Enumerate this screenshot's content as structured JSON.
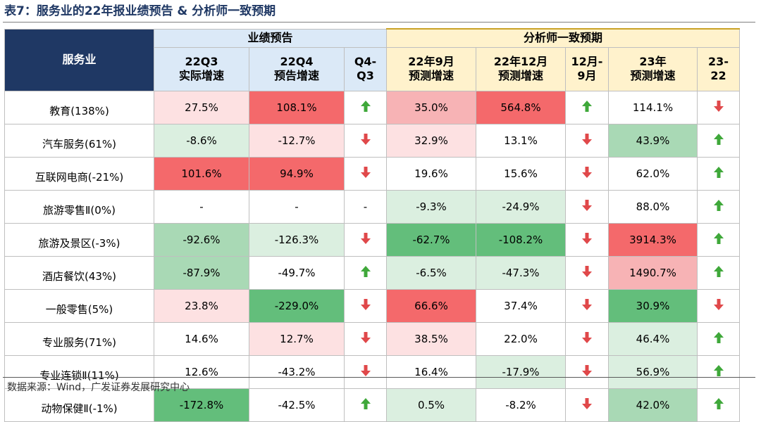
{
  "title": "表7：服务业的22年报业绩预告 & 分析师一致预期",
  "header": {
    "row_label": "服务业",
    "group_performance": "业绩预告",
    "group_consensus": "分析师一致预期",
    "cols": [
      {
        "l1": "22Q3",
        "l2": "实际增速"
      },
      {
        "l1": "22Q4",
        "l2": "预告增速"
      },
      {
        "l1": "Q4-",
        "l2": "Q3"
      },
      {
        "l1": "22年9月",
        "l2": "预测增速"
      },
      {
        "l1": "22年12月",
        "l2": "预测增速"
      },
      {
        "l1": "12月-",
        "l2": "9月"
      },
      {
        "l1": "23年",
        "l2": "预测增速"
      },
      {
        "l1": "23-",
        "l2": "22"
      }
    ]
  },
  "colors": {
    "red_strong": "#f4696b",
    "red_medium": "#f7b3b5",
    "red_light": "#fde1e2",
    "green_strong": "#63be7b",
    "green_medium": "#a9d9b5",
    "green_light": "#dbefe0",
    "white": "#ffffff",
    "arrow_up": "#3fa83a",
    "arrow_down": "#e0484a"
  },
  "rows": [
    {
      "label": "教育(138%)",
      "q3": "27.5%",
      "q3c": "red_light",
      "q4": "108.1%",
      "q4c": "red_strong",
      "a1": "up",
      "sep": "35.0%",
      "sepc": "red_medium",
      "dec": "564.8%",
      "decc": "red_strong",
      "a2": "up",
      "y23": "114.1%",
      "y23c": "white",
      "a3": "down"
    },
    {
      "label": "汽车服务(61%)",
      "q3": "-8.6%",
      "q3c": "green_light",
      "q4": "-12.7%",
      "q4c": "red_light",
      "a1": "down",
      "sep": "32.9%",
      "sepc": "red_light",
      "dec": "13.1%",
      "decc": "white",
      "a2": "down",
      "y23": "43.9%",
      "y23c": "green_medium",
      "a3": "up"
    },
    {
      "label": "互联网电商(-21%)",
      "q3": "101.6%",
      "q3c": "red_strong",
      "q4": "94.9%",
      "q4c": "red_strong",
      "a1": "down",
      "sep": "19.6%",
      "sepc": "white",
      "dec": "15.6%",
      "decc": "white",
      "a2": "down",
      "y23": "62.0%",
      "y23c": "white",
      "a3": "up"
    },
    {
      "label": "旅游零售Ⅱ(0%)",
      "q3": "-",
      "q3c": "white",
      "q4": "-",
      "q4c": "white",
      "a1": "-",
      "sep": "-9.3%",
      "sepc": "green_light",
      "dec": "-24.9%",
      "decc": "green_light",
      "a2": "down",
      "y23": "88.0%",
      "y23c": "white",
      "a3": "up"
    },
    {
      "label": "旅游及景区(-3%)",
      "q3": "-92.6%",
      "q3c": "green_medium",
      "q4": "-126.3%",
      "q4c": "green_light",
      "a1": "down",
      "sep": "-62.7%",
      "sepc": "green_strong",
      "dec": "-108.2%",
      "decc": "green_strong",
      "a2": "down",
      "y23": "3914.3%",
      "y23c": "red_strong",
      "a3": "up"
    },
    {
      "label": "酒店餐饮(43%)",
      "q3": "-87.9%",
      "q3c": "green_medium",
      "q4": "-49.7%",
      "q4c": "white",
      "a1": "up",
      "sep": "-6.5%",
      "sepc": "green_light",
      "dec": "-47.3%",
      "decc": "green_light",
      "a2": "down",
      "y23": "1490.7%",
      "y23c": "red_medium",
      "a3": "up"
    },
    {
      "label": "一般零售(5%)",
      "q3": "23.8%",
      "q3c": "red_light",
      "q4": "-229.0%",
      "q4c": "green_strong",
      "a1": "down",
      "sep": "66.6%",
      "sepc": "red_strong",
      "dec": "37.4%",
      "decc": "white",
      "a2": "down",
      "y23": "30.9%",
      "y23c": "green_strong",
      "a3": "down"
    },
    {
      "label": "专业服务(71%)",
      "q3": "14.6%",
      "q3c": "white",
      "q4": "12.7%",
      "q4c": "red_light",
      "a1": "down",
      "sep": "38.5%",
      "sepc": "red_light",
      "dec": "22.0%",
      "decc": "white",
      "a2": "down",
      "y23": "46.4%",
      "y23c": "green_light",
      "a3": "up"
    },
    {
      "label": "专业连锁Ⅱ(11%)",
      "q3": "12.6%",
      "q3c": "white",
      "q4": "-43.2%",
      "q4c": "white",
      "a1": "down",
      "sep": "16.4%",
      "sepc": "white",
      "dec": "-17.9%",
      "decc": "green_light",
      "a2": "down",
      "y23": "56.9%",
      "y23c": "green_light",
      "a3": "up"
    },
    {
      "label": "动物保健Ⅱ(-1%)",
      "q3": "-172.8%",
      "q3c": "green_strong",
      "q4": "-42.5%",
      "q4c": "white",
      "a1": "up",
      "sep": "0.5%",
      "sepc": "green_light",
      "dec": "-8.2%",
      "decc": "white",
      "a2": "down",
      "y23": "42.0%",
      "y23c": "green_medium",
      "a3": "up"
    }
  ],
  "source": "数据来源：Wind，广发证券发展研究中心"
}
